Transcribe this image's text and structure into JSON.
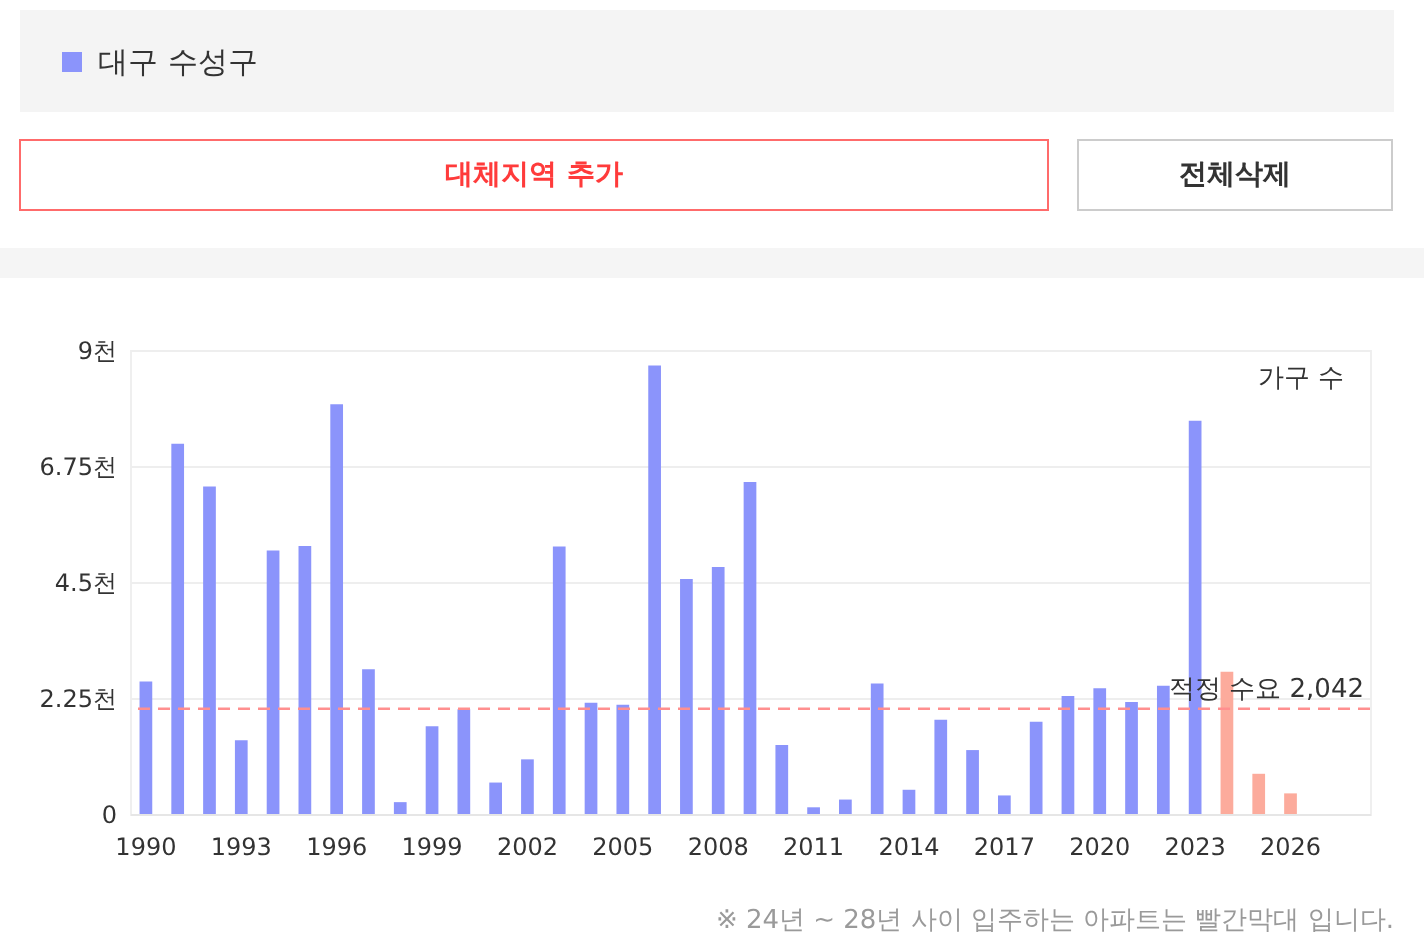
{
  "chart_data": {
    "type": "bar",
    "categories": [
      "1990",
      null,
      null,
      "1993",
      null,
      null,
      "1996",
      null,
      null,
      "1999",
      null,
      null,
      "2002",
      null,
      null,
      "2005",
      null,
      null,
      "2008",
      null,
      null,
      "2011",
      null,
      null,
      "2014",
      null,
      null,
      "2017",
      null,
      null,
      "2020",
      null,
      null,
      "2023",
      null,
      null,
      "2026",
      null,
      null
    ],
    "series": [
      {
        "name": "대구 수성구",
        "color": "#8b94fb",
        "values": [
          2.57,
          7.18,
          6.35,
          1.43,
          5.11,
          5.2,
          7.95,
          2.81,
          0.23,
          1.7,
          2.03,
          0.61,
          1.06,
          5.19,
          2.16,
          2.12,
          8.7,
          4.56,
          4.79,
          6.44,
          1.34,
          0.13,
          0.28,
          2.53,
          0.47,
          1.83,
          1.24,
          0.36,
          1.79,
          2.29,
          2.44,
          2.17,
          2.49,
          7.63,
          2.76,
          0.78,
          0.4,
          null,
          null
        ],
        "colors": [
          "#8b94fb",
          "#8b94fb",
          "#8b94fb",
          "#8b94fb",
          "#8b94fb",
          "#8b94fb",
          "#8b94fb",
          "#8b94fb",
          "#8b94fb",
          "#8b94fb",
          "#8b94fb",
          "#8b94fb",
          "#8b94fb",
          "#8b94fb",
          "#8b94fb",
          "#8b94fb",
          "#8b94fb",
          "#8b94fb",
          "#8b94fb",
          "#8b94fb",
          "#8b94fb",
          "#8b94fb",
          "#8b94fb",
          "#8b94fb",
          "#8b94fb",
          "#8b94fb",
          "#8b94fb",
          "#8b94fb",
          "#8b94fb",
          "#8b94fb",
          "#8b94fb",
          "#8b94fb",
          "#8b94fb",
          "#8b94fb",
          "#fcab9c",
          "#fcab9c",
          "#fcab9c",
          null,
          null
        ]
      }
    ],
    "ylabel": "가구 수",
    "ylim": [
      0,
      9
    ],
    "yticks": [
      0,
      {
        "value": 2.25,
        "label": "2.25천"
      },
      {
        "value": 4.5,
        "label": "4.5천"
      },
      {
        "value": 6.75,
        "label": "6.75천"
      },
      {
        "value": 9,
        "label": "9천"
      }
    ],
    "ref_lines": [
      {
        "axis": "y",
        "value": 2.042,
        "label": "적정 수요 2,042",
        "color": "#ff8f8f",
        "line_style": "dashed"
      }
    ],
    "grid": "y",
    "legend": "top left",
    "annotations": [
      "대체지역 추가",
      "전체삭제",
      "※ 24년 ~ 28년 사이 입주하는 아파트는 빨간막대 입니다."
    ]
  }
}
